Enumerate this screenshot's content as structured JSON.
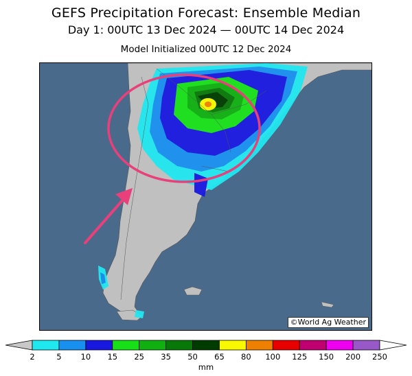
{
  "title_line1": "GEFS Precipitation Forecast: Ensemble Median",
  "title_line2": "Day 1: 00UTC 13 Dec 2024 — 00UTC 14 Dec 2024",
  "title_line3": "Model Initialized 00UTC 12 Dec 2024",
  "credit": "©World Ag Weather",
  "colors": {
    "ocean": "#4a6a8c",
    "land": "#c0c0c0",
    "annotation": "#e8407a"
  },
  "legend": {
    "units": "mm",
    "ticks": [
      "2",
      "5",
      "10",
      "15",
      "25",
      "35",
      "50",
      "65",
      "80",
      "100",
      "125",
      "150",
      "200",
      "250"
    ],
    "colors": [
      "#20e8f0",
      "#1890f0",
      "#1818e0",
      "#18e018",
      "#10b010",
      "#087808",
      "#003c00",
      "#f8f800",
      "#f08000",
      "#e80000",
      "#c00070",
      "#f000f0",
      "#9858c8"
    ],
    "under_color": "#c8c8c8",
    "over_color": "#ffffff"
  },
  "annotations": [
    "red-ellipse-highlight",
    "red-arrow-pointer"
  ]
}
